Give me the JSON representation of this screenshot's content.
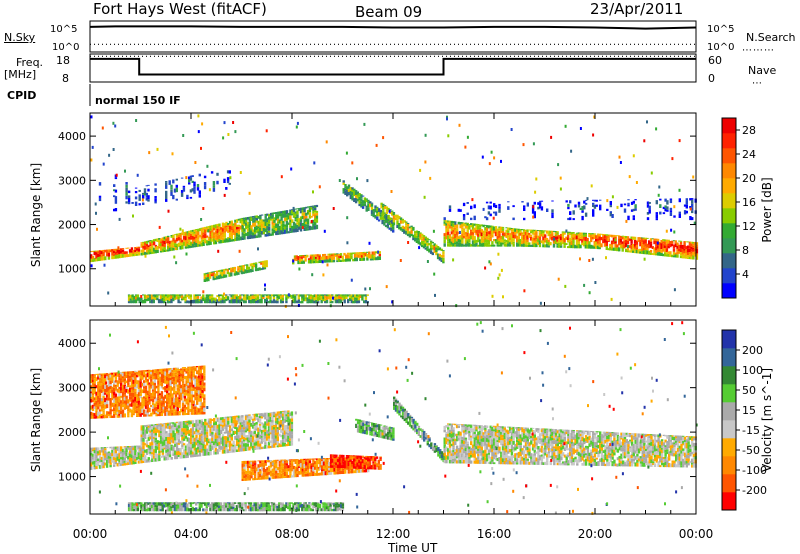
{
  "header": {
    "station": "Fort Hays West (fitACF)",
    "beam": "Beam 09",
    "date": "23/Apr/2011"
  },
  "noise_panel": {
    "left_label_a": "N.Sky",
    "left_label_b": "",
    "right_label": "N.Search",
    "left_ticks": [
      "10^5",
      "10^0"
    ],
    "right_ticks": [
      "10^5",
      "10^0"
    ]
  },
  "freq_panel": {
    "left_label_a": "Freq.",
    "left_label_b": "[MHz]",
    "right_label": "Nave",
    "left_ticks": [
      "18",
      "8"
    ],
    "right_ticks": [
      "60",
      "0"
    ]
  },
  "cpid": {
    "label": "CPID",
    "mode": "normal 150 IF"
  },
  "colors": {
    "frame": "#000000",
    "freq_line": "#000000"
  },
  "chart_data": [
    {
      "type": "line",
      "panel": "noise",
      "title": "",
      "x_hours": [
        0,
        1,
        2,
        4,
        6,
        8,
        10,
        12,
        14,
        16,
        18,
        20,
        22,
        24
      ],
      "series": [
        {
          "name": "N.Sky",
          "values": [
            4.3,
            4.4,
            4.4,
            4.4,
            4.3,
            4.3,
            4.3,
            4.2,
            4.2,
            4.3,
            4.3,
            4.2,
            4.0,
            4.2
          ]
        },
        {
          "name": "N.Search",
          "values": [
            1.2,
            1.2,
            1.2,
            1.2,
            1.2,
            1.2,
            1.2,
            1.2,
            1.2,
            1.2,
            1.2,
            1.2,
            1.2,
            1.2
          ]
        }
      ]
    },
    {
      "type": "line",
      "panel": "frequency",
      "title": "",
      "series": [
        {
          "name": "Freq.",
          "x_hours": [
            0,
            1.95,
            1.95,
            14.0,
            14.0,
            24
          ],
          "values": [
            16.5,
            16.5,
            10.5,
            10.5,
            16.5,
            16.5
          ]
        },
        {
          "name": "Nave",
          "x_hours": [
            0,
            24
          ],
          "values": [
            57,
            57
          ]
        }
      ]
    },
    {
      "type": "heatmap",
      "panel": "power",
      "ylabel": "Slant Range [km]",
      "xlabel": "",
      "xlim_hours": [
        0,
        24
      ],
      "ylim": [
        180,
        4500
      ],
      "yticks": [
        1000,
        2000,
        3000,
        4000
      ],
      "colorbar": {
        "label": "Power [dB]",
        "ticks": [
          4,
          8,
          12,
          16,
          20,
          24,
          28
        ],
        "colors": [
          "#0000ff",
          "#2244cc",
          "#336688",
          "#339955",
          "#33aa33",
          "#88cc00",
          "#ddcc00",
          "#ffaa00",
          "#ff8800",
          "#ff5500",
          "#ff2200",
          "#ee0000"
        ]
      },
      "bands": [
        {
          "t0": 0.0,
          "t1": 1.9,
          "r0": 1150,
          "r1": 1300,
          "r2": 1400,
          "r3": 1500,
          "level": 0.95
        },
        {
          "t0": 2.0,
          "t1": 6.0,
          "r0": 1300,
          "r1": 1650,
          "r2": 1600,
          "r3": 2150,
          "level": 0.7
        },
        {
          "t0": 6.0,
          "t1": 9.0,
          "r0": 1650,
          "r1": 1900,
          "r2": 2150,
          "r3": 2450,
          "level": 0.45
        },
        {
          "t0": 4.5,
          "t1": 7.0,
          "r0": 700,
          "r1": 1000,
          "r2": 900,
          "r3": 1200,
          "level": 0.6
        },
        {
          "t0": 8.0,
          "t1": 11.5,
          "r0": 1100,
          "r1": 1200,
          "r2": 1300,
          "r3": 1400,
          "level": 0.7
        },
        {
          "t0": 10.0,
          "t1": 12.0,
          "r0": 2700,
          "r1": 1800,
          "r2": 3000,
          "r3": 2100,
          "level": 0.4
        },
        {
          "t0": 11.5,
          "t1": 14.0,
          "r0": 2200,
          "r1": 1100,
          "r2": 2500,
          "r3": 1400,
          "level": 0.55
        },
        {
          "t0": 14.0,
          "t1": 17.0,
          "r0": 1500,
          "r1": 1500,
          "r2": 2100,
          "r3": 1900,
          "level": 0.65
        },
        {
          "t0": 17.0,
          "t1": 20.0,
          "r0": 1500,
          "r1": 1450,
          "r2": 1900,
          "r3": 1800,
          "level": 0.7
        },
        {
          "t0": 20.0,
          "t1": 24.0,
          "r0": 1450,
          "r1": 1200,
          "r2": 1800,
          "r3": 1600,
          "level": 0.85
        },
        {
          "t0": 0.0,
          "t1": 1.5,
          "r0": 2300,
          "r1": 2300,
          "r2": 3000,
          "r3": 3200,
          "level": 0.15
        },
        {
          "t0": 1.5,
          "t1": 5.5,
          "r0": 2400,
          "r1": 2700,
          "r2": 2800,
          "r3": 3300,
          "level": 0.15
        },
        {
          "t0": 14.0,
          "t1": 24.0,
          "r0": 2100,
          "r1": 2100,
          "r2": 2500,
          "r3": 2600,
          "level": 0.1
        },
        {
          "t0": 1.5,
          "t1": 11.0,
          "r0": 220,
          "r1": 220,
          "r2": 420,
          "r3": 420,
          "level": 0.5
        }
      ]
    },
    {
      "type": "heatmap",
      "panel": "velocity",
      "ylabel": "Slant Range [km]",
      "xlabel": "Time UT",
      "xlim_hours": [
        0,
        24
      ],
      "xticks": [
        "00:00",
        "04:00",
        "08:00",
        "12:00",
        "16:00",
        "20:00",
        "00:00"
      ],
      "ylim": [
        180,
        4500
      ],
      "yticks": [
        1000,
        2000,
        3000,
        4000
      ],
      "colorbar": {
        "label": "Velocity [m s^-1]",
        "ticks": [
          200,
          100,
          50,
          15,
          -15,
          -50,
          -100,
          -200
        ],
        "colors": [
          "#2233aa",
          "#336699",
          "#338833",
          "#55cc33",
          "#aaaaaa",
          "#c8c8c8",
          "#ffaa00",
          "#ff8800",
          "#ff5500",
          "#ff0000"
        ]
      },
      "bands": [
        {
          "t0": 0.0,
          "t1": 2.0,
          "r0": 1150,
          "r1": 1300,
          "r2": 1650,
          "r3": 1700,
          "level": 0.5
        },
        {
          "t0": 2.0,
          "t1": 8.0,
          "r0": 1300,
          "r1": 1700,
          "r2": 2150,
          "r3": 2500,
          "level": 0.5
        },
        {
          "t0": 6.0,
          "t1": 11.0,
          "r0": 900,
          "r1": 1100,
          "r2": 1350,
          "r3": 1450,
          "level": 0.75
        },
        {
          "t0": 9.5,
          "t1": 11.5,
          "r0": 1200,
          "r1": 1150,
          "r2": 1500,
          "r3": 1450,
          "level": 0.9
        },
        {
          "t0": 10.5,
          "t1": 12.0,
          "r0": 2000,
          "r1": 1800,
          "r2": 2300,
          "r3": 2100,
          "level": 0.35
        },
        {
          "t0": 12.0,
          "t1": 14.0,
          "r0": 2500,
          "r1": 1300,
          "r2": 2800,
          "r3": 1500,
          "level": 0.3
        },
        {
          "t0": 14.0,
          "t1": 24.0,
          "r0": 1300,
          "r1": 1200,
          "r2": 2200,
          "r3": 1900,
          "level": 0.5
        },
        {
          "t0": 1.5,
          "t1": 10.0,
          "r0": 220,
          "r1": 220,
          "r2": 420,
          "r3": 420,
          "level": 0.35
        },
        {
          "t0": 0.0,
          "t1": 4.5,
          "r0": 2300,
          "r1": 2400,
          "r2": 3300,
          "r3": 3500,
          "level": 0.75
        }
      ]
    }
  ]
}
